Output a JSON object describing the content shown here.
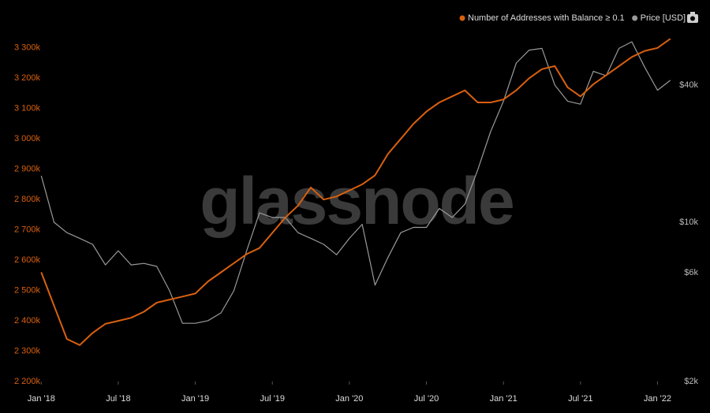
{
  "chart_data": {
    "type": "line",
    "watermark": "glassnode",
    "x": [
      "2018-01",
      "2018-02",
      "2018-03",
      "2018-04",
      "2018-05",
      "2018-06",
      "2018-07",
      "2018-08",
      "2018-09",
      "2018-10",
      "2018-11",
      "2018-12",
      "2019-01",
      "2019-02",
      "2019-03",
      "2019-04",
      "2019-05",
      "2019-06",
      "2019-07",
      "2019-08",
      "2019-09",
      "2019-10",
      "2019-11",
      "2019-12",
      "2020-01",
      "2020-02",
      "2020-03",
      "2020-04",
      "2020-05",
      "2020-06",
      "2020-07",
      "2020-08",
      "2020-09",
      "2020-10",
      "2020-11",
      "2020-12",
      "2021-01",
      "2021-02",
      "2021-03",
      "2021-04",
      "2021-05",
      "2021-06",
      "2021-07",
      "2021-08",
      "2021-09",
      "2021-10",
      "2021-11",
      "2021-12",
      "2022-01",
      "2022-02"
    ],
    "xlim": [
      "2017-12",
      "2022-03"
    ],
    "xticks": [
      {
        "value": "2018-01",
        "label": "Jan '18"
      },
      {
        "value": "2018-07",
        "label": "Jul '18"
      },
      {
        "value": "2019-01",
        "label": "Jan '19"
      },
      {
        "value": "2019-07",
        "label": "Jul '19"
      },
      {
        "value": "2020-01",
        "label": "Jan '20"
      },
      {
        "value": "2020-07",
        "label": "Jul '20"
      },
      {
        "value": "2021-01",
        "label": "Jan '21"
      },
      {
        "value": "2021-07",
        "label": "Jul '21"
      },
      {
        "value": "2022-01",
        "label": "Jan '22"
      }
    ],
    "ylim": [
      2200000,
      3380000
    ],
    "yticks": [
      {
        "value": 2200000,
        "label": "2 200k"
      },
      {
        "value": 2300000,
        "label": "2 300k"
      },
      {
        "value": 2400000,
        "label": "2 400k"
      },
      {
        "value": 2500000,
        "label": "2 500k"
      },
      {
        "value": 2600000,
        "label": "2 600k"
      },
      {
        "value": 2700000,
        "label": "2 700k"
      },
      {
        "value": 2800000,
        "label": "2 800k"
      },
      {
        "value": 2900000,
        "label": "2 900k"
      },
      {
        "value": 3000000,
        "label": "3 000k"
      },
      {
        "value": 3100000,
        "label": "3 100k"
      },
      {
        "value": 3200000,
        "label": "3 200k"
      },
      {
        "value": 3300000,
        "label": "3 300k"
      }
    ],
    "y2lim": [
      2000,
      74500
    ],
    "y2scale": "log",
    "y2ticks": [
      {
        "value": 2000,
        "label": "$2k"
      },
      {
        "value": 6000,
        "label": "$6k"
      },
      {
        "value": 10000,
        "label": "$10k"
      },
      {
        "value": 40000,
        "label": "$40k"
      }
    ],
    "grid": false,
    "legend": "top-right",
    "series": [
      {
        "name": "Number of Addresses with Balance ≥ 0.1",
        "color": "#d9600f",
        "values": [
          2560000,
          2450000,
          2340000,
          2320000,
          2360000,
          2390000,
          2400000,
          2410000,
          2430000,
          2460000,
          2470000,
          2480000,
          2490000,
          2530000,
          2560000,
          2590000,
          2620000,
          2640000,
          2690000,
          2740000,
          2780000,
          2840000,
          2800000,
          2810000,
          2830000,
          2850000,
          2880000,
          2950000,
          3000000,
          3050000,
          3090000,
          3120000,
          3140000,
          3160000,
          3120000,
          3120000,
          3130000,
          3160000,
          3200000,
          3230000,
          3240000,
          3170000,
          3140000,
          3180000,
          3210000,
          3240000,
          3270000,
          3290000,
          3300000,
          3330000
        ]
      },
      {
        "name": "Price [USD]",
        "color": "#9a9a9a",
        "axis": "y2",
        "values": [
          16000,
          10000,
          9000,
          8500,
          8000,
          6500,
          7500,
          6500,
          6600,
          6400,
          5000,
          3600,
          3600,
          3700,
          4000,
          5000,
          7500,
          11000,
          10500,
          10500,
          9000,
          8500,
          8000,
          7200,
          8500,
          9800,
          5300,
          7000,
          9000,
          9500,
          9500,
          11500,
          10500,
          12000,
          17000,
          25000,
          34000,
          50000,
          57000,
          58000,
          40000,
          34000,
          33000,
          46000,
          44000,
          58000,
          62000,
          48000,
          38000,
          42000
        ]
      }
    ]
  }
}
